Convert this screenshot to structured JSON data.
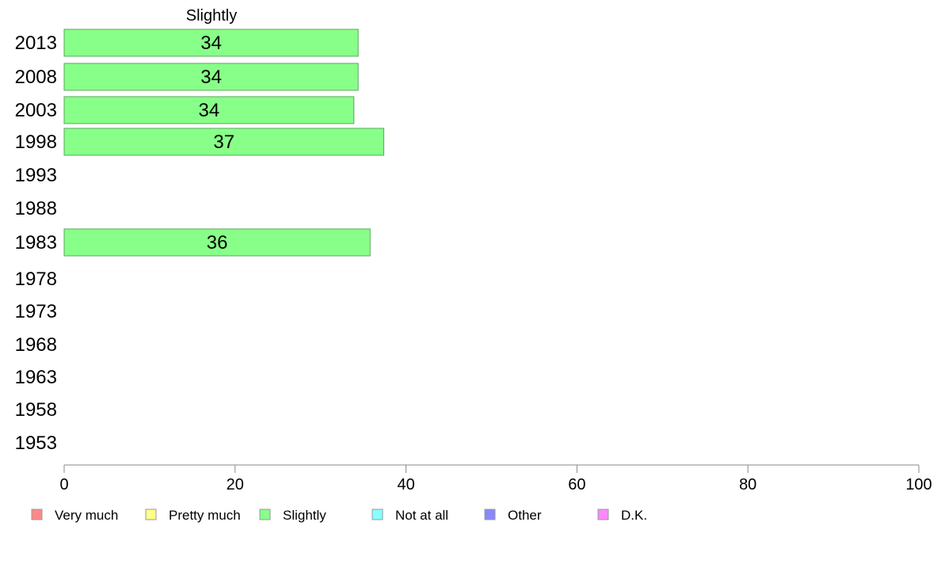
{
  "chart_data": {
    "type": "bar",
    "orientation": "horizontal",
    "title": "",
    "series_title": "Slightly",
    "categories": [
      "2013",
      "2008",
      "2003",
      "1998",
      "1993",
      "1988",
      "1983",
      "1978",
      "1973",
      "1968",
      "1963",
      "1958",
      "1953"
    ],
    "series": [
      {
        "name": "Slightly",
        "values": [
          34,
          34,
          34,
          37,
          null,
          null,
          36,
          null,
          null,
          null,
          null,
          null,
          null
        ],
        "precise_values": [
          34.4,
          34.4,
          33.9,
          37.4,
          null,
          null,
          35.8,
          null,
          null,
          null,
          null,
          null,
          null
        ]
      }
    ],
    "xlim": [
      0,
      100
    ],
    "xticks": [
      0,
      20,
      40,
      60,
      80,
      100
    ],
    "legend": {
      "placement": "bottom",
      "items": [
        {
          "label": "Very much",
          "color": "#ff8888"
        },
        {
          "label": "Pretty much",
          "color": "#ffff88"
        },
        {
          "label": "Slightly",
          "color": "#88ff88"
        },
        {
          "label": "Not at all",
          "color": "#88ffff"
        },
        {
          "label": "Other",
          "color": "#8888ff"
        },
        {
          "label": "D.K.",
          "color": "#ff88ff"
        }
      ]
    },
    "bar_color": "#88ff88",
    "bar_stroke": "#5aa85a",
    "axis_color": "#888888",
    "grid": false
  }
}
